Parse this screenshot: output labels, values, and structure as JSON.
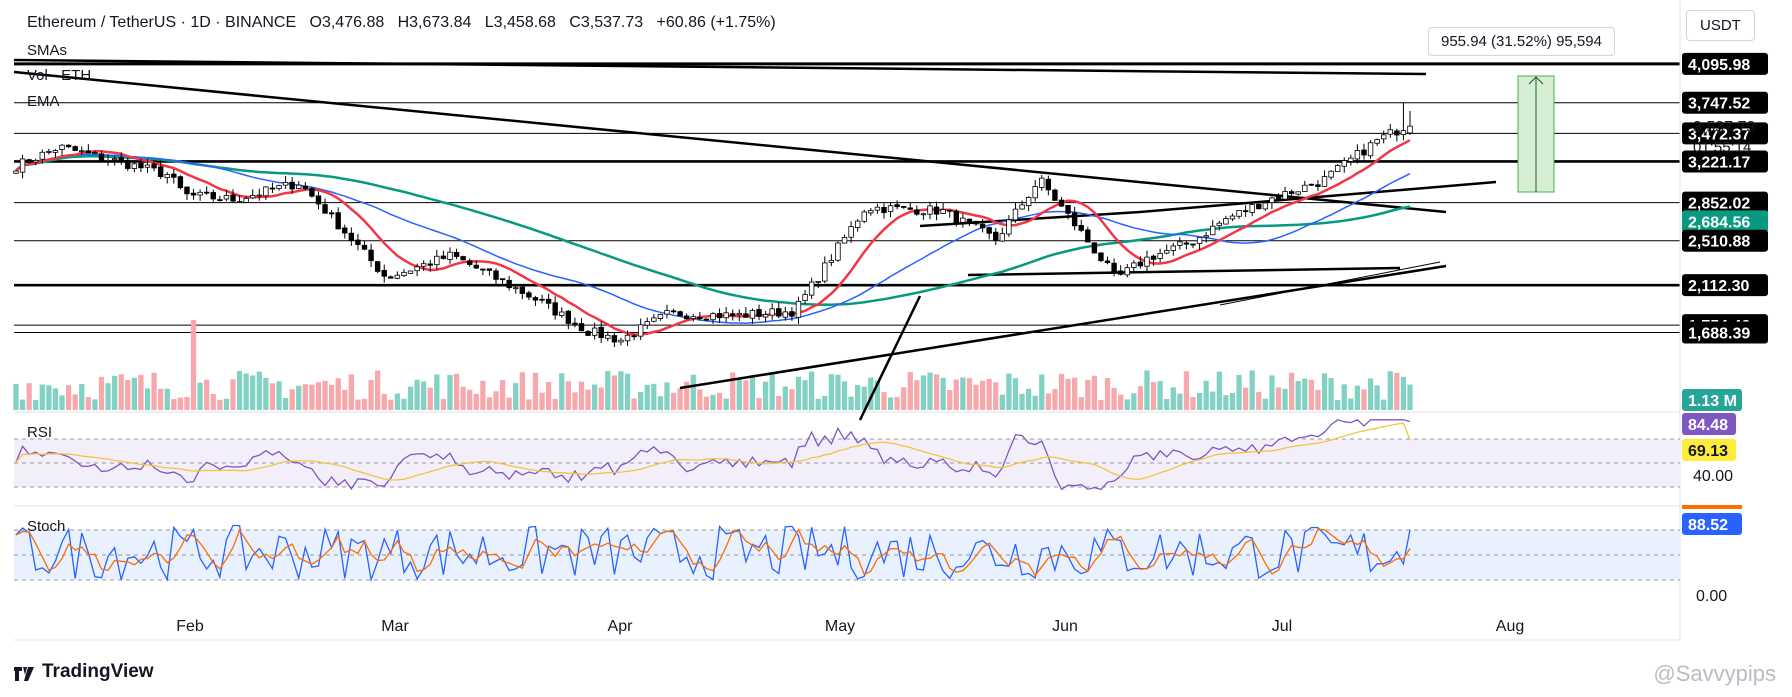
{
  "header": {
    "symbol": "Ethereum / TetherUS",
    "interval": "1D",
    "exchange": "BINANCE",
    "open_label": "O",
    "open": "3,476.88",
    "high_label": "H",
    "high": "3,673.84",
    "low_label": "L",
    "low": "3,458.68",
    "close_label": "C",
    "close": "3,537.73",
    "change": "+60.86 (+1.75%)"
  },
  "indicators": {
    "smas": "SMAs",
    "volume": "Vol · ETH",
    "ema": "EMA"
  },
  "currency_button": "USDT",
  "measure_tooltip": "955.94 (31.52%) 95,594",
  "price_labels": [
    {
      "text": "4,095.98",
      "price": 4095.98,
      "bg": "#000000",
      "fg": "#ffffff"
    },
    {
      "text": "3,747.52",
      "price": 3747.52,
      "bg": "#000000",
      "fg": "#ffffff"
    },
    {
      "text": "3,472.37",
      "price": 3472.37,
      "bg": "#000000",
      "fg": "#ffffff"
    },
    {
      "text": "3,221.17",
      "price": 3221.17,
      "bg": "#000000",
      "fg": "#ffffff"
    },
    {
      "text": "2,852.02",
      "price": 2852.02,
      "bg": "#000000",
      "fg": "#ffffff"
    },
    {
      "text": "2,684.56",
      "price": 2684.56,
      "bg": "#089981",
      "fg": "#ffffff"
    },
    {
      "text": "2,510.88",
      "price": 2510.88,
      "bg": "#000000",
      "fg": "#ffffff"
    },
    {
      "text": "2,112.30",
      "price": 2112.3,
      "bg": "#000000",
      "fg": "#ffffff"
    },
    {
      "text": "1,754.48",
      "price": 1754.48,
      "bg": "#000000",
      "fg": "#ffffff"
    },
    {
      "text": "1,688.39",
      "price": 1688.39,
      "bg": "#000000",
      "fg": "#ffffff"
    }
  ],
  "current_price": {
    "text": "3,537.73",
    "countdown": "01:55:14"
  },
  "volume_label": {
    "text": "1.13 M",
    "bg": "#26a69a"
  },
  "rsi": {
    "label": "RSI",
    "value": "84.48",
    "value_bg": "#7e57c2",
    "ma": "69.13",
    "ma_bg": "#ffeb3b",
    "level_text": "40.00"
  },
  "stoch": {
    "label": "Stoch",
    "value": "88.52",
    "value_bg": "#2962ff",
    "level_text": "0.00"
  },
  "x_axis": [
    "Feb",
    "Mar",
    "Apr",
    "May",
    "Jun",
    "Jul",
    "Aug"
  ],
  "branding": {
    "name": "TradingView",
    "watermark": "@Savvypips"
  },
  "colors": {
    "up": "#089981",
    "down": "#f23645",
    "ema": "#f23645",
    "sma_fast": "#2962ff",
    "sma_slow": "#089981",
    "rsi": "#7e57c2",
    "rsi_ma": "#f5c342",
    "stoch_k": "#2962ff",
    "stoch_d": "#ff6d00"
  },
  "chart_data": {
    "type": "candlestick",
    "price_scale": {
      "unit": "USDT",
      "range": [
        1600,
        4200
      ]
    },
    "time_axis": [
      "Feb",
      "Mar",
      "Apr",
      "May",
      "Jun",
      "Jul",
      "Aug"
    ],
    "candles_first": {
      "date": "Jan",
      "price": 3180
    },
    "swing_points": [
      {
        "label": "early-Jan",
        "price": 3350
      },
      {
        "label": "late-Jan",
        "price": 3100
      },
      {
        "label": "Feb",
        "price": 2880
      },
      {
        "label": "late-Feb",
        "price": 3050
      },
      {
        "label": "Mar",
        "price": 2180
      },
      {
        "label": "late-Mar",
        "price": 2380
      },
      {
        "label": "Apr",
        "price": 1650
      },
      {
        "label": "May",
        "price": 2810
      },
      {
        "label": "Jun",
        "price": 2520
      },
      {
        "label": "mid-Jun",
        "price": 3060
      },
      {
        "label": "late-Jun",
        "price": 2180
      },
      {
        "label": "Jul",
        "price": 2700
      },
      {
        "label": "latest",
        "price": 3537.73
      }
    ],
    "rsi_range": [
      0,
      100
    ],
    "stoch_range": [
      0,
      100
    ]
  }
}
